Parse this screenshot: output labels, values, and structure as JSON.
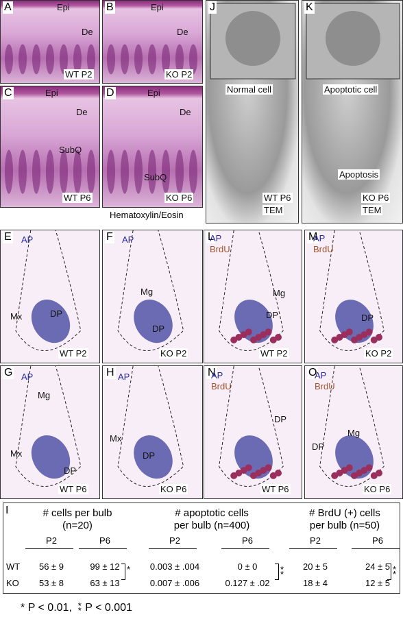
{
  "panels": [
    {
      "letter": "A",
      "labels": [
        "Epi",
        "De",
        "WT P2"
      ]
    },
    {
      "letter": "B",
      "labels": [
        "Epi",
        "De",
        "KO P2"
      ]
    },
    {
      "letter": "C",
      "labels": [
        "Epi",
        "De",
        "SubQ",
        "WT P6"
      ]
    },
    {
      "letter": "D",
      "labels": [
        "Epi",
        "De",
        "SubQ",
        "KO P6"
      ]
    },
    {
      "letter": "J",
      "labels": [
        "Normal cell",
        "WT P6",
        "TEM"
      ]
    },
    {
      "letter": "K",
      "labels": [
        "Apoptotic cell",
        "Apoptosis",
        "KO P6",
        "TEM"
      ]
    },
    {
      "letter": "E",
      "labels": [
        "AP",
        "Mx",
        "DP",
        "WT P2"
      ]
    },
    {
      "letter": "F",
      "labels": [
        "AP",
        "Mg",
        "DP",
        "KO P2"
      ]
    },
    {
      "letter": "L",
      "labels": [
        "AP",
        "BrdU",
        "Mg",
        "DP",
        "WT P2"
      ]
    },
    {
      "letter": "M",
      "labels": [
        "AP",
        "BrdU",
        "DP",
        "KO P2"
      ]
    },
    {
      "letter": "G",
      "labels": [
        "AP",
        "Mg",
        "Mx",
        "DP",
        "WT P6"
      ]
    },
    {
      "letter": "H",
      "labels": [
        "AP",
        "Mx",
        "DP",
        "KO P6"
      ]
    },
    {
      "letter": "N",
      "labels": [
        "AP",
        "BrdU",
        "DP",
        "WT P6"
      ]
    },
    {
      "letter": "O",
      "labels": [
        "AP",
        "BrdU",
        "Mg",
        "DP",
        "KO P6"
      ]
    }
  ],
  "stain_caption": "Hematoxylin/Eosin",
  "table": {
    "letter": "I",
    "groups": [
      {
        "title": [
          "# cells per bulb",
          "(n=20)"
        ],
        "columns": [
          "P2",
          "P6"
        ],
        "significance": "*"
      },
      {
        "title": [
          "# apoptotic cells",
          "per bulb (n=400)"
        ],
        "columns": [
          "P2",
          "P6"
        ],
        "significance": "**"
      },
      {
        "title": [
          "# BrdU (+) cells",
          "per bulb (n=50)"
        ],
        "columns": [
          "P2",
          "P6"
        ],
        "significance": "**"
      }
    ],
    "rows": [
      {
        "label": "WT",
        "cells": [
          "56 ± 9",
          "99 ± 12",
          "0.003 ± .004",
          "0 ± 0",
          "20 ± 5",
          "24 ± 5"
        ]
      },
      {
        "label": "KO",
        "cells": [
          "53 ± 8",
          "63 ± 13",
          "0.007 ± .006",
          "0.127 ± .02",
          "18 ± 4",
          "12 ± 5"
        ]
      }
    ]
  },
  "footnote": [
    "*",
    "P < 0.01,",
    "**",
    "P < 0.001"
  ]
}
